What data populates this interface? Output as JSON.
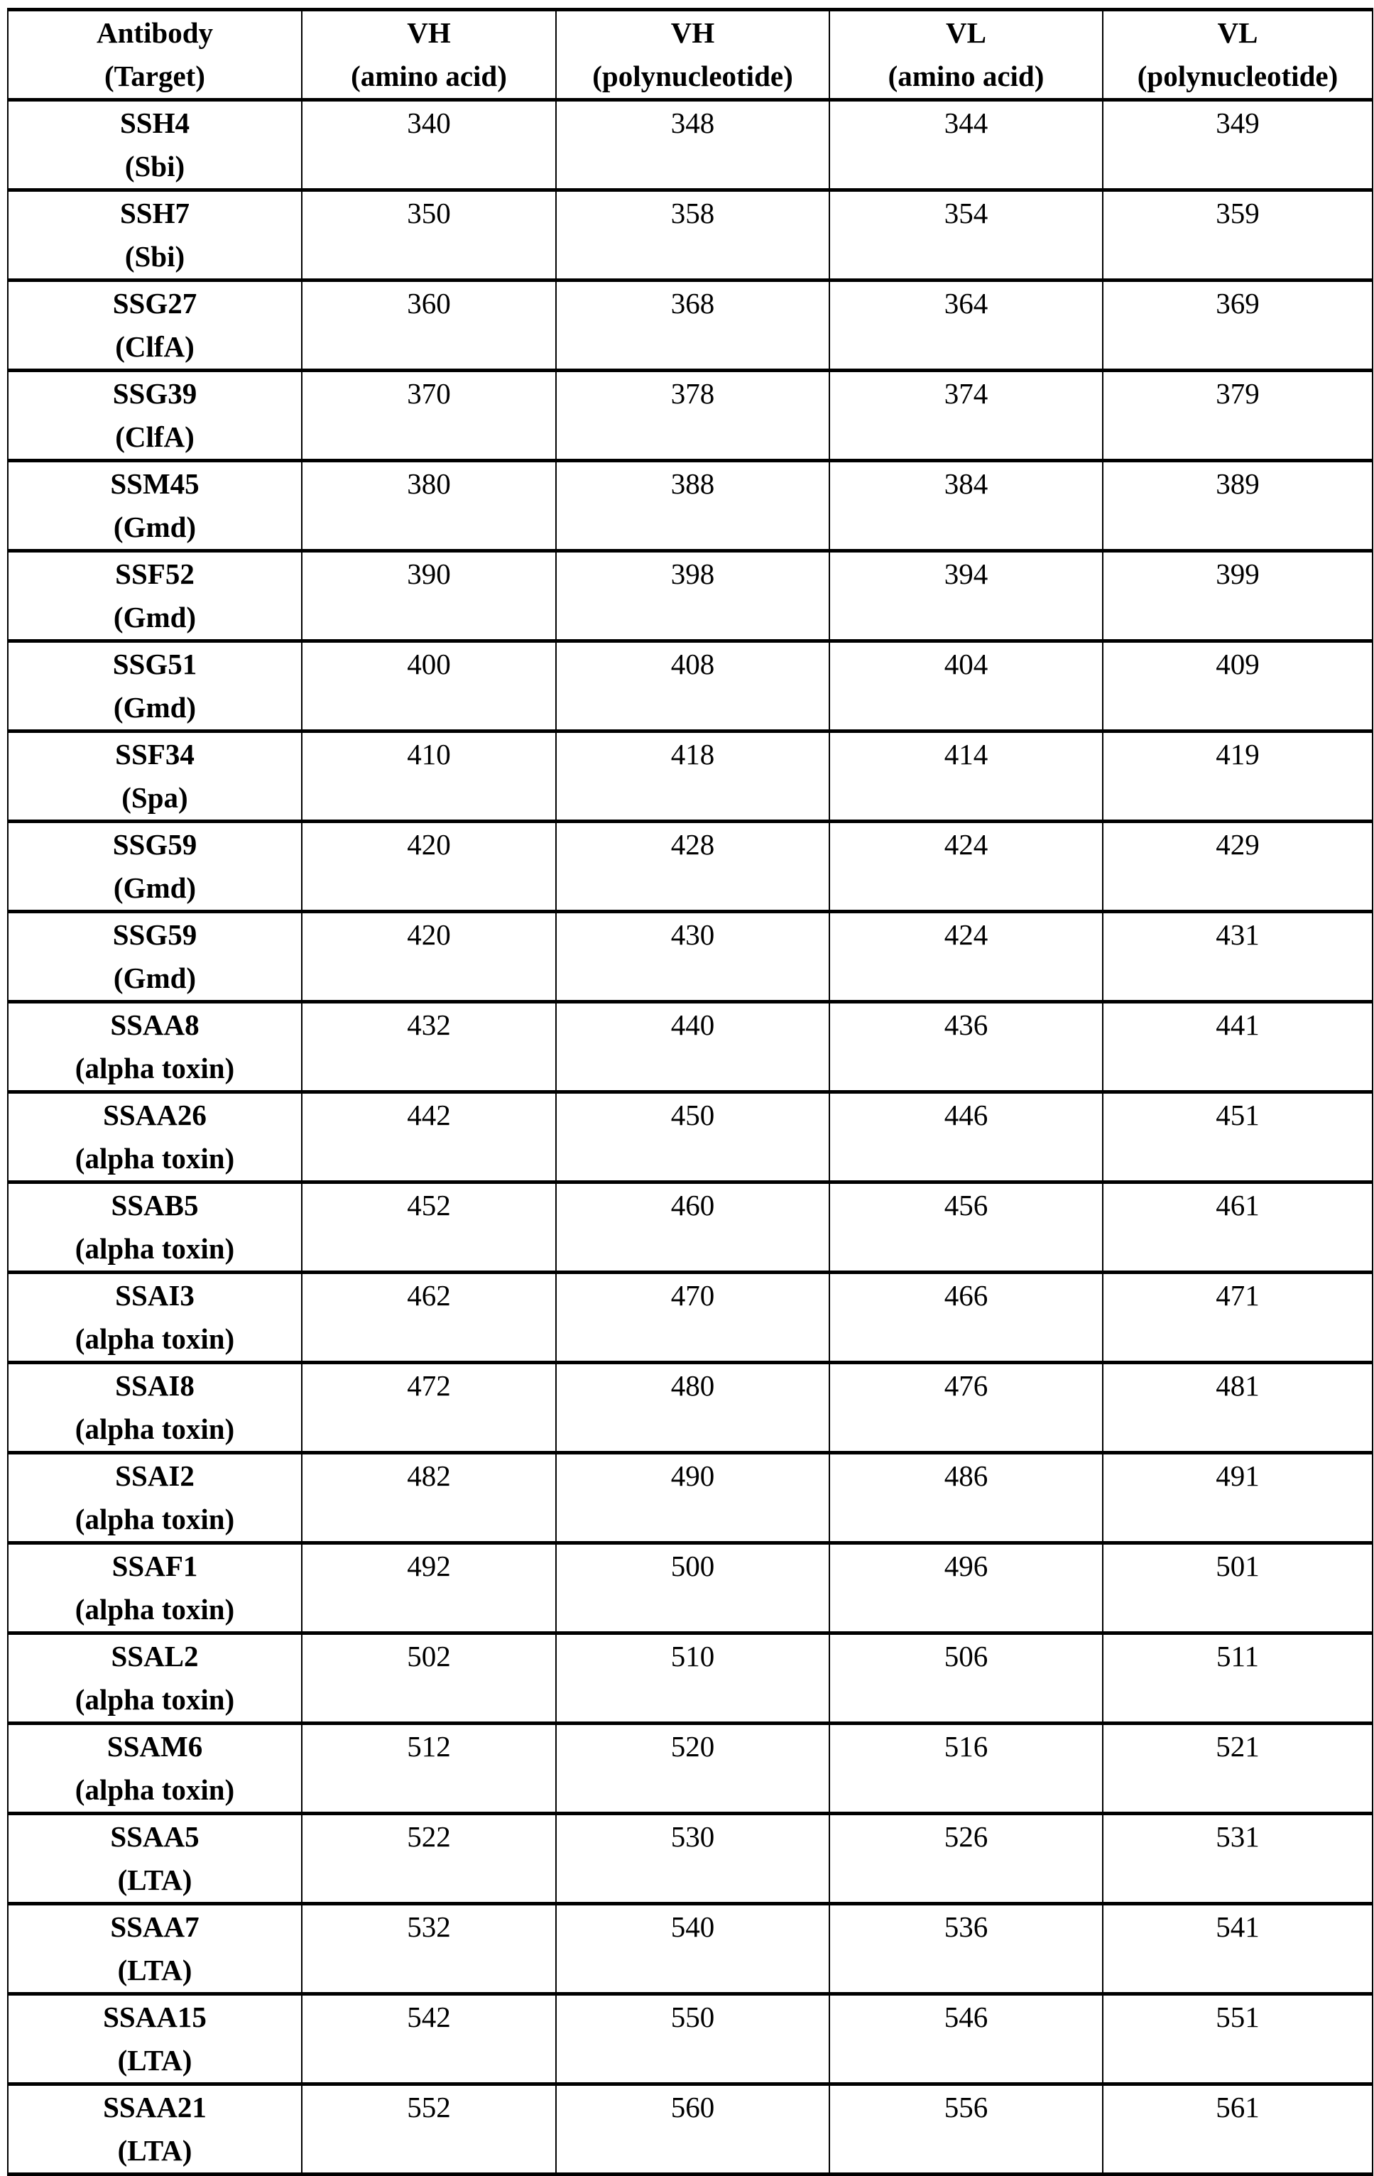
{
  "table": {
    "headers": [
      {
        "line1": "Antibody",
        "line2": "(Target)"
      },
      {
        "line1": "VH",
        "line2": "(amino acid)"
      },
      {
        "line1": "VH",
        "line2": "(polynucleotide)"
      },
      {
        "line1": "VL",
        "line2": "(amino acid)"
      },
      {
        "line1": "VL",
        "line2": "(polynucleotide)"
      }
    ],
    "rows": [
      {
        "antibody": "SSH4",
        "target": "(Sbi)",
        "vh_aa": "340",
        "vh_nt": "348",
        "vl_aa": "344",
        "vl_nt": "349"
      },
      {
        "antibody": "SSH7",
        "target": "(Sbi)",
        "vh_aa": "350",
        "vh_nt": "358",
        "vl_aa": "354",
        "vl_nt": "359"
      },
      {
        "antibody": "SSG27",
        "target": "(ClfA)",
        "vh_aa": "360",
        "vh_nt": "368",
        "vl_aa": "364",
        "vl_nt": "369"
      },
      {
        "antibody": "SSG39",
        "target": "(ClfA)",
        "vh_aa": "370",
        "vh_nt": "378",
        "vl_aa": "374",
        "vl_nt": "379"
      },
      {
        "antibody": "SSM45",
        "target": "(Gmd)",
        "vh_aa": "380",
        "vh_nt": "388",
        "vl_aa": "384",
        "vl_nt": "389"
      },
      {
        "antibody": "SSF52",
        "target": "(Gmd)",
        "vh_aa": "390",
        "vh_nt": "398",
        "vl_aa": "394",
        "vl_nt": "399"
      },
      {
        "antibody": "SSG51",
        "target": "(Gmd)",
        "vh_aa": "400",
        "vh_nt": "408",
        "vl_aa": "404",
        "vl_nt": "409"
      },
      {
        "antibody": "SSF34",
        "target": "(Spa)",
        "vh_aa": "410",
        "vh_nt": "418",
        "vl_aa": "414",
        "vl_nt": "419"
      },
      {
        "antibody": "SSG59",
        "target": "(Gmd)",
        "vh_aa": "420",
        "vh_nt": "428",
        "vl_aa": "424",
        "vl_nt": "429"
      },
      {
        "antibody": "SSG59",
        "target": "(Gmd)",
        "vh_aa": "420",
        "vh_nt": "430",
        "vl_aa": "424",
        "vl_nt": "431"
      },
      {
        "antibody": "SSAA8",
        "target": "(alpha toxin)",
        "vh_aa": "432",
        "vh_nt": "440",
        "vl_aa": "436",
        "vl_nt": "441"
      },
      {
        "antibody": "SSAA26",
        "target": "(alpha toxin)",
        "vh_aa": "442",
        "vh_nt": "450",
        "vl_aa": "446",
        "vl_nt": "451"
      },
      {
        "antibody": "SSAB5",
        "target": "(alpha toxin)",
        "vh_aa": "452",
        "vh_nt": "460",
        "vl_aa": "456",
        "vl_nt": "461"
      },
      {
        "antibody": "SSAI3",
        "target": "(alpha toxin)",
        "vh_aa": "462",
        "vh_nt": "470",
        "vl_aa": "466",
        "vl_nt": "471"
      },
      {
        "antibody": "SSAI8",
        "target": "(alpha toxin)",
        "vh_aa": "472",
        "vh_nt": "480",
        "vl_aa": "476",
        "vl_nt": "481"
      },
      {
        "antibody": "SSAI2",
        "target": "(alpha toxin)",
        "vh_aa": "482",
        "vh_nt": "490",
        "vl_aa": "486",
        "vl_nt": "491"
      },
      {
        "antibody": "SSAF1",
        "target": "(alpha toxin)",
        "vh_aa": "492",
        "vh_nt": "500",
        "vl_aa": "496",
        "vl_nt": "501"
      },
      {
        "antibody": "SSAL2",
        "target": "(alpha toxin)",
        "vh_aa": "502",
        "vh_nt": "510",
        "vl_aa": "506",
        "vl_nt": "511"
      },
      {
        "antibody": "SSAM6",
        "target": "(alpha toxin)",
        "vh_aa": "512",
        "vh_nt": "520",
        "vl_aa": "516",
        "vl_nt": "521"
      },
      {
        "antibody": "SSAA5",
        "target": "(LTA)",
        "vh_aa": "522",
        "vh_nt": "530",
        "vl_aa": "526",
        "vl_nt": "531"
      },
      {
        "antibody": "SSAA7",
        "target": "(LTA)",
        "vh_aa": "532",
        "vh_nt": "540",
        "vl_aa": "536",
        "vl_nt": "541"
      },
      {
        "antibody": "SSAA15",
        "target": "(LTA)",
        "vh_aa": "542",
        "vh_nt": "550",
        "vl_aa": "546",
        "vl_nt": "551"
      },
      {
        "antibody": "SSAA21",
        "target": "(LTA)",
        "vh_aa": "552",
        "vh_nt": "560",
        "vl_aa": "556",
        "vl_nt": "561"
      }
    ]
  }
}
